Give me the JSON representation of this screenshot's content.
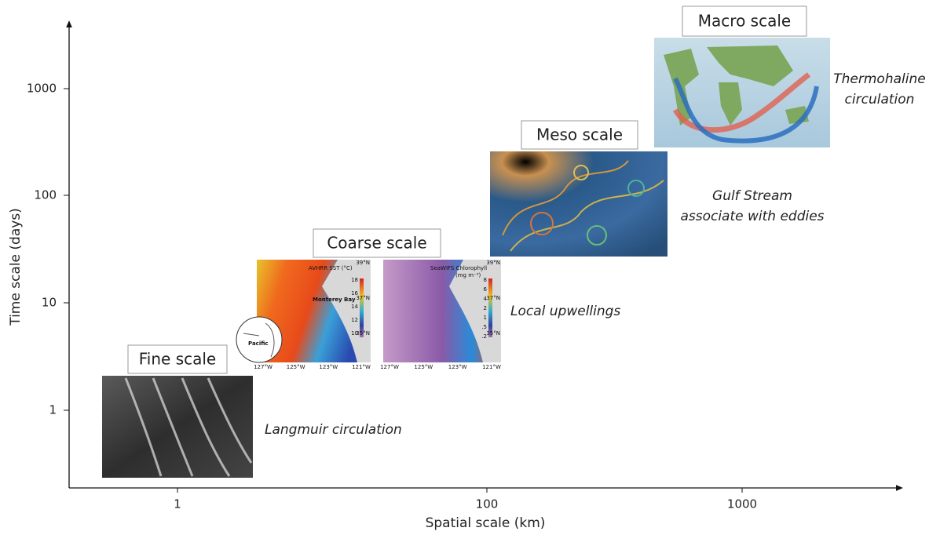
{
  "axes": {
    "x_label": "Spatial scale (km)",
    "y_label": "Time scale (days)",
    "x_ticks": [
      1,
      100,
      1000
    ],
    "y_ticks": [
      1,
      10,
      100,
      1000
    ]
  },
  "scales": [
    {
      "name": "Fine scale",
      "caption": [
        "Langmuir circulation"
      ]
    },
    {
      "name": "Coarse scale",
      "caption": [
        "Local upwellings"
      ]
    },
    {
      "name": "Meso scale",
      "caption": [
        "Gulf Stream",
        "associate with eddies"
      ]
    },
    {
      "name": "Macro scale",
      "caption": [
        "Thermohaline",
        "circulation"
      ]
    }
  ],
  "coarse_maps": {
    "sst_title": "AVHRR SST (°C)",
    "chl_title": "SeaWIFS Chlorophyll",
    "chl_units": "(mg m⁻³)",
    "bay": "Monterey Bay",
    "ocean": "Pacific",
    "lon_labels": [
      "127°W",
      "125°W",
      "123°W",
      "121°W"
    ],
    "lat_labels": [
      "39°N",
      "37°N",
      "35°N"
    ],
    "sst_bar": [
      "18",
      "16",
      "14",
      "12",
      "10"
    ],
    "chl_bar": [
      "8",
      "6",
      "4",
      "2",
      "1",
      ".5",
      ".2"
    ]
  }
}
